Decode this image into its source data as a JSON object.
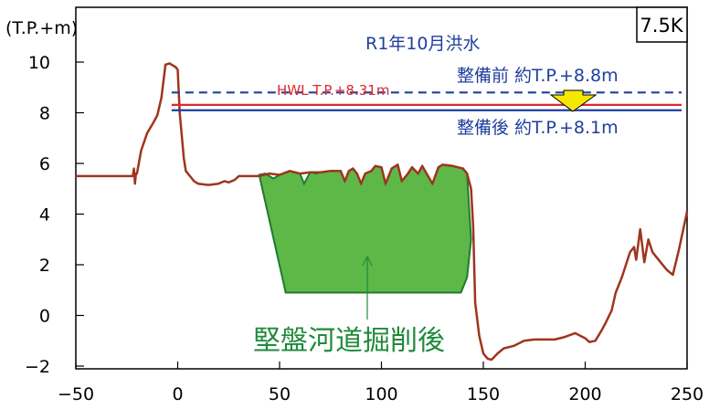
{
  "chart_data": {
    "type": "line",
    "title": "",
    "ylabel": "(T.P.+m)",
    "xlabel": "",
    "section_label": "7.5K",
    "xlim": [
      -50,
      250
    ],
    "ylim": [
      -2,
      11
    ],
    "x_ticks": [
      -50,
      0,
      50,
      100,
      150,
      200,
      250
    ],
    "y_ticks": [
      -2,
      0,
      2,
      4,
      6,
      8,
      10
    ],
    "grid": false,
    "series": [
      {
        "color": "#a0341e",
        "x": [
          -50,
          -22,
          -21.5,
          -21,
          -20.5,
          -20,
          -18,
          -15,
          -12,
          -10,
          -8,
          -6,
          -4,
          -3,
          -1,
          0,
          1,
          3,
          4,
          6,
          8,
          10,
          15,
          20,
          23,
          25,
          28,
          30,
          35,
          40,
          45,
          50,
          55,
          60,
          65,
          70,
          75,
          80,
          82,
          84,
          86,
          88,
          90,
          92,
          95,
          97,
          100,
          102,
          105,
          108,
          110,
          113,
          115,
          118,
          120,
          125,
          128,
          130,
          135,
          140,
          142,
          144,
          145,
          146,
          148,
          150,
          152,
          154,
          157,
          160,
          165,
          170,
          175,
          180,
          185,
          190,
          195,
          200,
          202,
          205,
          208,
          210,
          213,
          215,
          218,
          220,
          222,
          224,
          225,
          227,
          229,
          231,
          233,
          235,
          240,
          243,
          246,
          250
        ],
        "y": [
          5.5,
          5.5,
          5.8,
          5.2,
          5.6,
          5.6,
          6.5,
          7.2,
          7.6,
          7.9,
          8.6,
          9.9,
          9.95,
          9.9,
          9.8,
          9.7,
          8.0,
          6.2,
          5.7,
          5.5,
          5.3,
          5.2,
          5.15,
          5.2,
          5.3,
          5.25,
          5.35,
          5.5,
          5.5,
          5.5,
          5.6,
          5.55,
          5.7,
          5.6,
          5.65,
          5.65,
          5.7,
          5.7,
          5.3,
          5.7,
          5.8,
          5.6,
          5.2,
          5.6,
          5.7,
          5.9,
          5.85,
          5.2,
          5.8,
          5.95,
          5.3,
          5.6,
          5.85,
          5.6,
          5.9,
          5.2,
          5.85,
          5.95,
          5.9,
          5.8,
          5.6,
          5.0,
          3.5,
          0.5,
          -0.8,
          -1.5,
          -1.7,
          -1.75,
          -1.5,
          -1.3,
          -1.2,
          -1.0,
          -0.95,
          -0.95,
          -0.95,
          -0.85,
          -0.7,
          -0.9,
          -1.05,
          -1.0,
          -0.6,
          -0.3,
          0.2,
          0.9,
          1.5,
          2.0,
          2.5,
          2.7,
          2.2,
          3.4,
          2.1,
          3.0,
          2.5,
          2.3,
          1.8,
          1.6,
          2.6,
          4.1
        ]
      }
    ],
    "excavation_polygon": {
      "color": "#5db848",
      "x": [
        40,
        43,
        47,
        50,
        55,
        60,
        62,
        65,
        68,
        70,
        75,
        80,
        82,
        84,
        86,
        88,
        90,
        92,
        95,
        97,
        100,
        102,
        105,
        108,
        110,
        113,
        115,
        118,
        120,
        125,
        128,
        130,
        135,
        140,
        142,
        144,
        142,
        139,
        53
      ],
      "y": [
        5.55,
        5.6,
        5.4,
        5.55,
        5.7,
        5.6,
        5.2,
        5.65,
        5.6,
        5.65,
        5.7,
        5.7,
        5.3,
        5.7,
        5.8,
        5.6,
        5.2,
        5.6,
        5.7,
        5.9,
        5.85,
        5.2,
        5.8,
        5.95,
        5.3,
        5.6,
        5.85,
        5.6,
        5.9,
        5.2,
        5.85,
        5.95,
        5.9,
        5.8,
        5.6,
        3.0,
        1.5,
        0.9,
        0.9
      ]
    },
    "reference_lines": [
      {
        "y": 8.8,
        "color": "#1f3f9f",
        "style": "dashed",
        "label": "整備前 約T.P.+8.8m"
      },
      {
        "y": 8.31,
        "color": "#e0282e",
        "style": "solid",
        "label": "HWL T.P.+8.31m"
      },
      {
        "y": 8.1,
        "color": "#1f3f9f",
        "style": "solid",
        "label": "整備後 約T.P.+8.1m"
      }
    ],
    "annotations": {
      "flood_event": "R1年10月洪水",
      "excavation": "堅盤河道掘削後"
    }
  }
}
